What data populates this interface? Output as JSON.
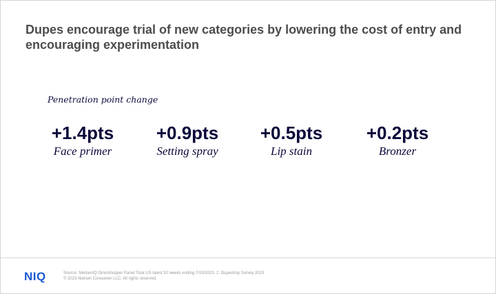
{
  "slide": {
    "title": "Dupes encourage trial of new categories by lowering the cost of entry and encouraging experimentation",
    "subtitle": "Penetration point change",
    "stats": [
      {
        "value": "+1.4pts",
        "label": "Face primer"
      },
      {
        "value": "+0.9pts",
        "label": "Setting spray"
      },
      {
        "value": "+0.5pts",
        "label": "Lip stain"
      },
      {
        "value": "+0.2pts",
        "label": "Bronzer"
      }
    ]
  },
  "footer": {
    "logo": "NIQ",
    "source_line1": "Source: NielsenIQ Omnishopper Panel Total US latest 52 weeks ending 7/15/2023. 2. Dupeshop Survey 2023",
    "source_line2": "© 2023 Nielsen Consumer LLC. All rights reserved."
  },
  "colors": {
    "title": "#4d4d4d",
    "stat_text": "#08083a",
    "logo": "#1b5bd6",
    "source_text": "#9a9a9a"
  }
}
